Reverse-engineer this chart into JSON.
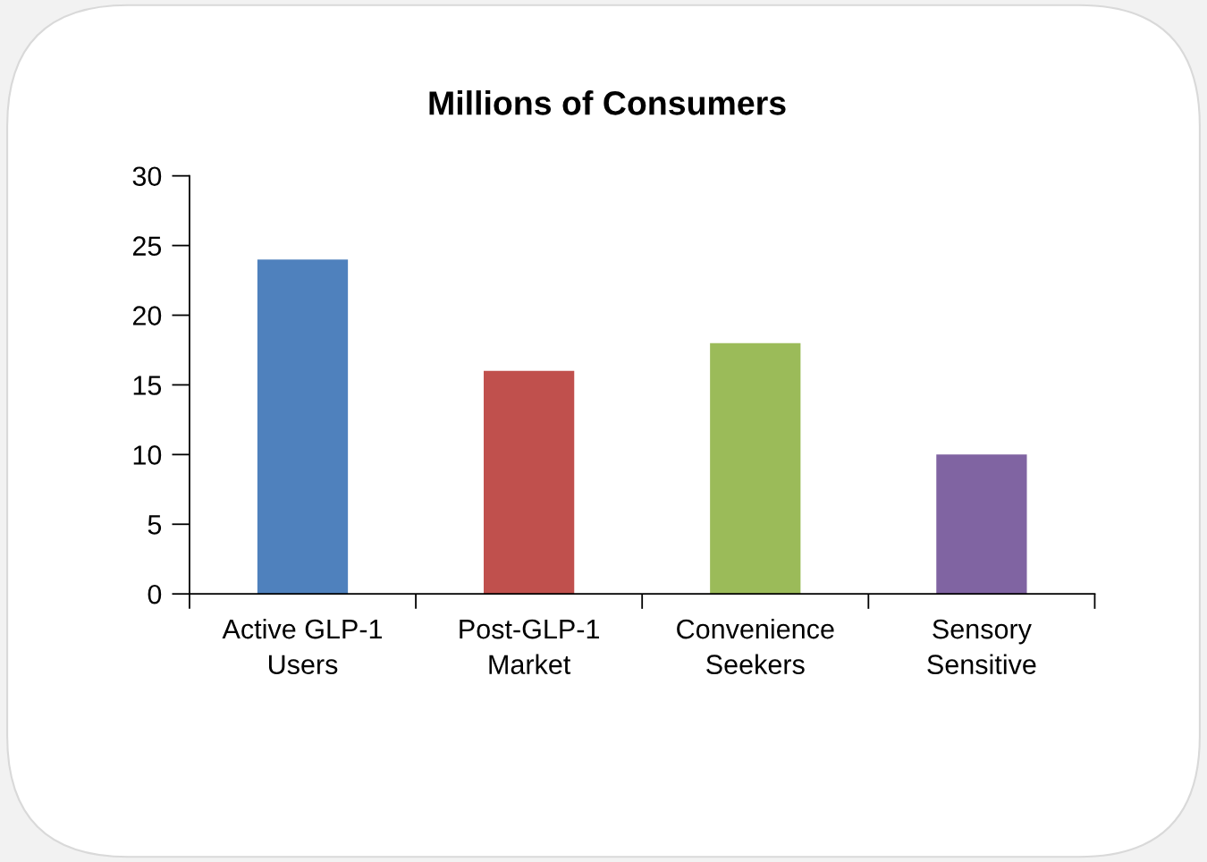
{
  "chart_data": {
    "type": "bar",
    "title": "Millions of Consumers",
    "categories": [
      "Active GLP-1\nUsers",
      "Post-GLP-1\nMarket",
      "Convenience\nSeekers",
      "Sensory\nSensitive"
    ],
    "values": [
      24,
      16,
      18,
      10
    ],
    "colors": [
      "#4f81bd",
      "#c0504d",
      "#9bbb59",
      "#8064a2"
    ],
    "ylim": [
      0,
      30
    ],
    "yticks": [
      0,
      5,
      10,
      15,
      20,
      25,
      30
    ],
    "grid": false
  }
}
